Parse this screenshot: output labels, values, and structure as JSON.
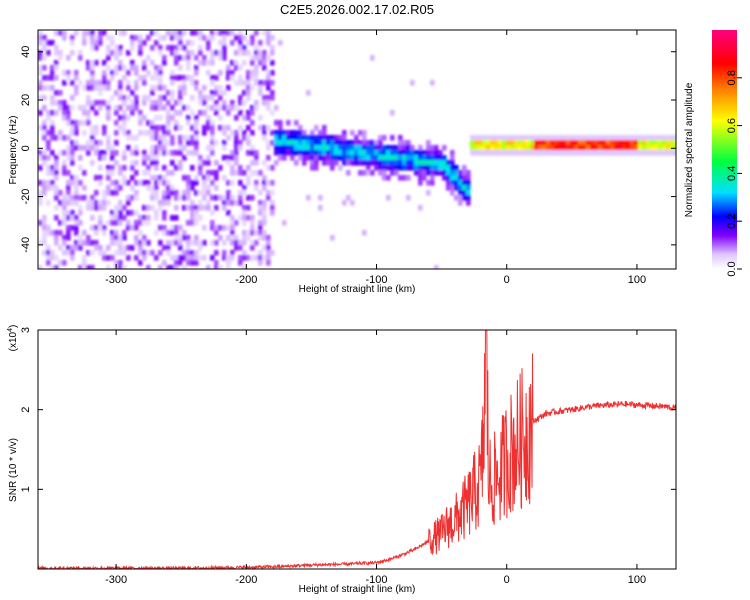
{
  "title": "C2E5.2026.002.17.02.R05",
  "chart_data": [
    {
      "type": "heatmap",
      "xlabel": "Height of straight line (km)",
      "ylabel": "Frequency (Hz)",
      "xlim": [
        -360,
        130
      ],
      "ylim": [
        -50,
        49
      ],
      "x_ticks": [
        -300,
        -200,
        -100,
        0,
        100
      ],
      "y_ticks": [
        -40,
        -20,
        0,
        20,
        40
      ],
      "colorbar": {
        "label": "Normalized spectral amplitude",
        "range": [
          0,
          1
        ],
        "ticks": [
          0.0,
          0.2,
          0.4,
          0.6,
          0.8
        ],
        "colormap": [
          "#ffffff",
          "#c890ff",
          "#8000ff",
          "#0000ff",
          "#00e0ff",
          "#00ff40",
          "#ffff00",
          "#ff8000",
          "#ff0000",
          "#ff0080"
        ]
      },
      "regions": [
        {
          "x_range": [
            -360,
            -175
          ],
          "freq_range": [
            -50,
            49
          ],
          "amplitude": [
            0.0,
            0.15
          ],
          "note_color": "#8a2be2"
        },
        {
          "x_range": [
            -200,
            -30
          ],
          "center_freq": [
            5,
            -8
          ],
          "amplitude": [
            0.1,
            0.4
          ]
        },
        {
          "x_range": [
            -30,
            130
          ],
          "center_freq": 1.5,
          "amplitude": [
            0.5,
            0.95
          ]
        }
      ]
    },
    {
      "type": "line",
      "xlabel": "Height of straight line (km)",
      "ylabel": "SNR (10 * v/v)",
      "y_multiplier": "(x10^4)",
      "y_multiplier_base": "(x10",
      "y_multiplier_exp": "4",
      "y_multiplier_close": ")",
      "xlim": [
        -360,
        130
      ],
      "ylim": [
        0,
        3
      ],
      "x_ticks": [
        -300,
        -200,
        -100,
        0,
        100
      ],
      "y_ticks": [
        1,
        2,
        3
      ],
      "series": [
        {
          "color": "#ee3030",
          "x": [
            -360,
            -300,
            -250,
            -200,
            -175,
            -150,
            -125,
            -100,
            -90,
            -80,
            -70,
            -60,
            -50,
            -45,
            -40,
            -35,
            -30,
            -25,
            -20,
            -18,
            -16,
            -15,
            -14,
            -12,
            -10,
            -5,
            0,
            5,
            10,
            15,
            20,
            25,
            30,
            40,
            50,
            60,
            70,
            80,
            90,
            100,
            110,
            120,
            130
          ],
          "y": [
            0.01,
            0.01,
            0.01,
            0.02,
            0.03,
            0.05,
            0.06,
            0.08,
            0.12,
            0.18,
            0.25,
            0.35,
            0.45,
            0.55,
            0.6,
            0.7,
            0.8,
            0.95,
            1.1,
            1.5,
            2.9,
            2.2,
            1.2,
            1.05,
            1.1,
            1.2,
            1.4,
            1.5,
            1.6,
            1.72,
            1.85,
            1.9,
            1.95,
            1.98,
            2.0,
            2.03,
            2.05,
            2.06,
            2.07,
            2.06,
            2.05,
            2.04,
            2.02
          ]
        }
      ]
    }
  ]
}
